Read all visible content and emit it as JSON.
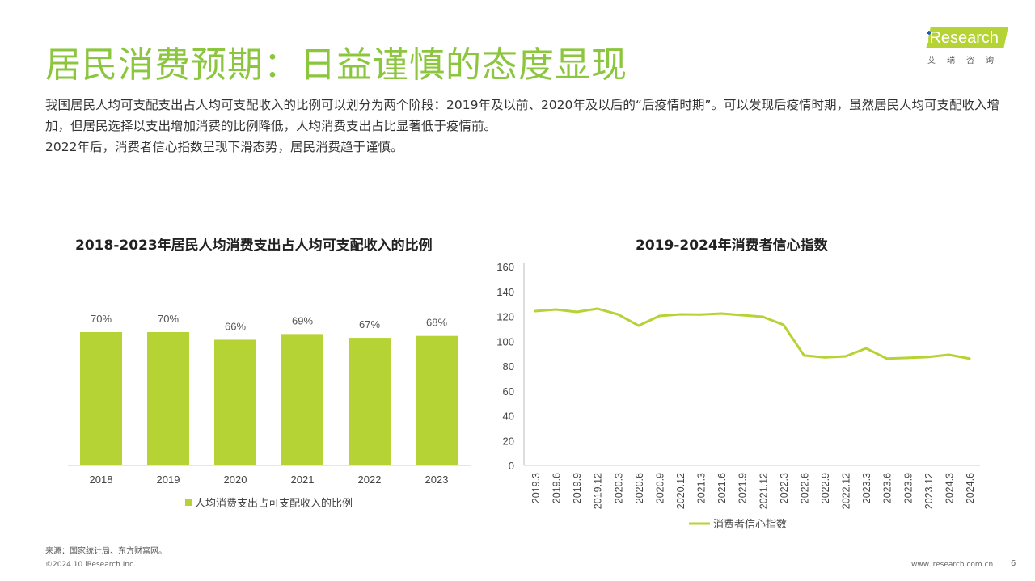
{
  "header": {
    "title": "居民消费预期：日益谨慎的态度显现",
    "logo_text": "iResearch",
    "logo_sub": "艾瑞咨询"
  },
  "intro": [
    "我国居民人均可支配支出占人均可支配收入的比例可以划分为两个阶段：2019年及以前、2020年及以后的“后疫情时期”。可以发现后疫情时期，虽然居民人均可支配收入增加，但居民选择以支出增加消费的比例降低，人均消费支出占比显著低于疫情前。",
    "2022年后，消费者信心指数呈现下滑态势，居民消费趋于谨慎。"
  ],
  "colors": {
    "accent": "#8cc63f",
    "series": "#b5d334"
  },
  "chart_data": [
    {
      "type": "bar",
      "title": "2018-2023年居民人均消费支出占人均可支配收入的比例",
      "categories": [
        "2018",
        "2019",
        "2020",
        "2021",
        "2022",
        "2023"
      ],
      "values": [
        70,
        70,
        66,
        69,
        67,
        68
      ],
      "labels": [
        "70%",
        "70%",
        "66%",
        "69%",
        "67%",
        "68%"
      ],
      "legend": "人均消费支出占可支配收入的比例",
      "ylim": [
        0,
        100
      ]
    },
    {
      "type": "line",
      "title": "2019-2024年消费者信心指数",
      "categories": [
        "2019.3",
        "2019.6",
        "2019.9",
        "2019.12",
        "2020.3",
        "2020.6",
        "2020.9",
        "2020.12",
        "2021.3",
        "2021.6",
        "2021.9",
        "2021.12",
        "2022.3",
        "2022.6",
        "2022.9",
        "2022.12",
        "2023.3",
        "2023.6",
        "2023.9",
        "2023.12",
        "2024.3",
        "2024.6"
      ],
      "values": [
        124.2,
        125.5,
        123.6,
        126.2,
        121.6,
        112.5,
        120.3,
        121.6,
        121.5,
        122.3,
        121,
        119.7,
        113.2,
        88.5,
        87,
        87.8,
        94.3,
        86,
        86.6,
        87.3,
        89.1,
        86
      ],
      "yticks": [
        "0",
        "20",
        "40",
        "60",
        "80",
        "100",
        "120",
        "140",
        "160"
      ],
      "ylim": [
        0,
        160
      ],
      "legend": "消费者信心指数"
    }
  ],
  "footer": {
    "source": "来源：国家统计局、东方财富网。",
    "copyright": "©2024.10 iResearch Inc.",
    "website": "www.iresearch.com.cn",
    "page": "6"
  }
}
